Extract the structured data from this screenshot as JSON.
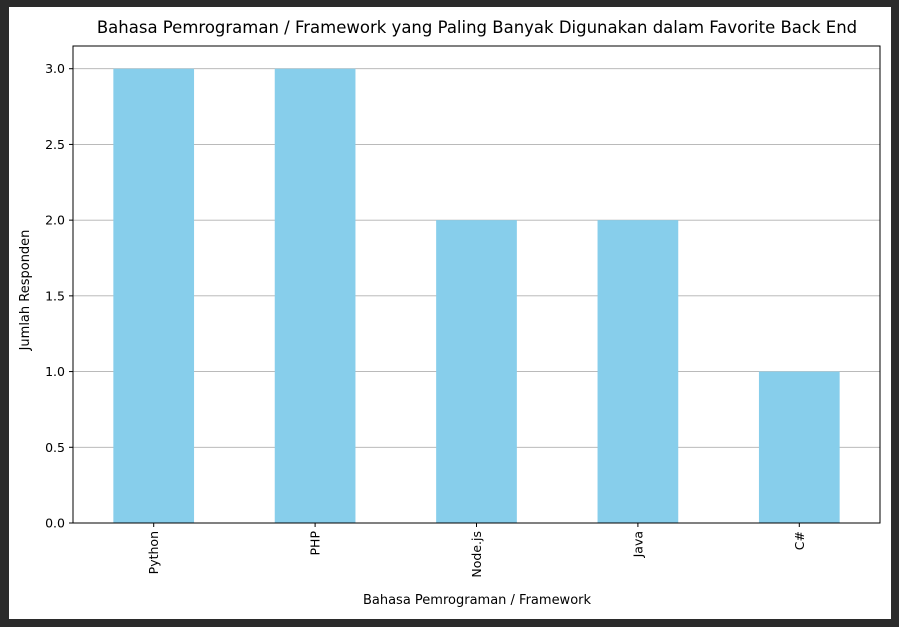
{
  "chart_data": {
    "type": "bar",
    "title": "Bahasa Pemrograman / Framework yang Paling Banyak Digunakan dalam Favorite Back End",
    "xlabel": "Bahasa Pemrograman / Framework",
    "ylabel": "Jumlah Responden",
    "categories": [
      "Python",
      "PHP",
      "Node.js",
      "Java",
      "C#"
    ],
    "values": [
      3,
      3,
      2,
      2,
      1
    ],
    "ylim": [
      0,
      3.15
    ],
    "yticks": [
      0.0,
      0.5,
      1.0,
      1.5,
      2.0,
      2.5,
      3.0
    ],
    "ytick_labels": [
      "0.0",
      "0.5",
      "1.0",
      "1.5",
      "2.0",
      "2.5",
      "3.0"
    ],
    "grid": "y",
    "x_tick_rotation": "vertical",
    "bar_color": "#87CEEB",
    "grid_color": "#b0b0b0"
  }
}
